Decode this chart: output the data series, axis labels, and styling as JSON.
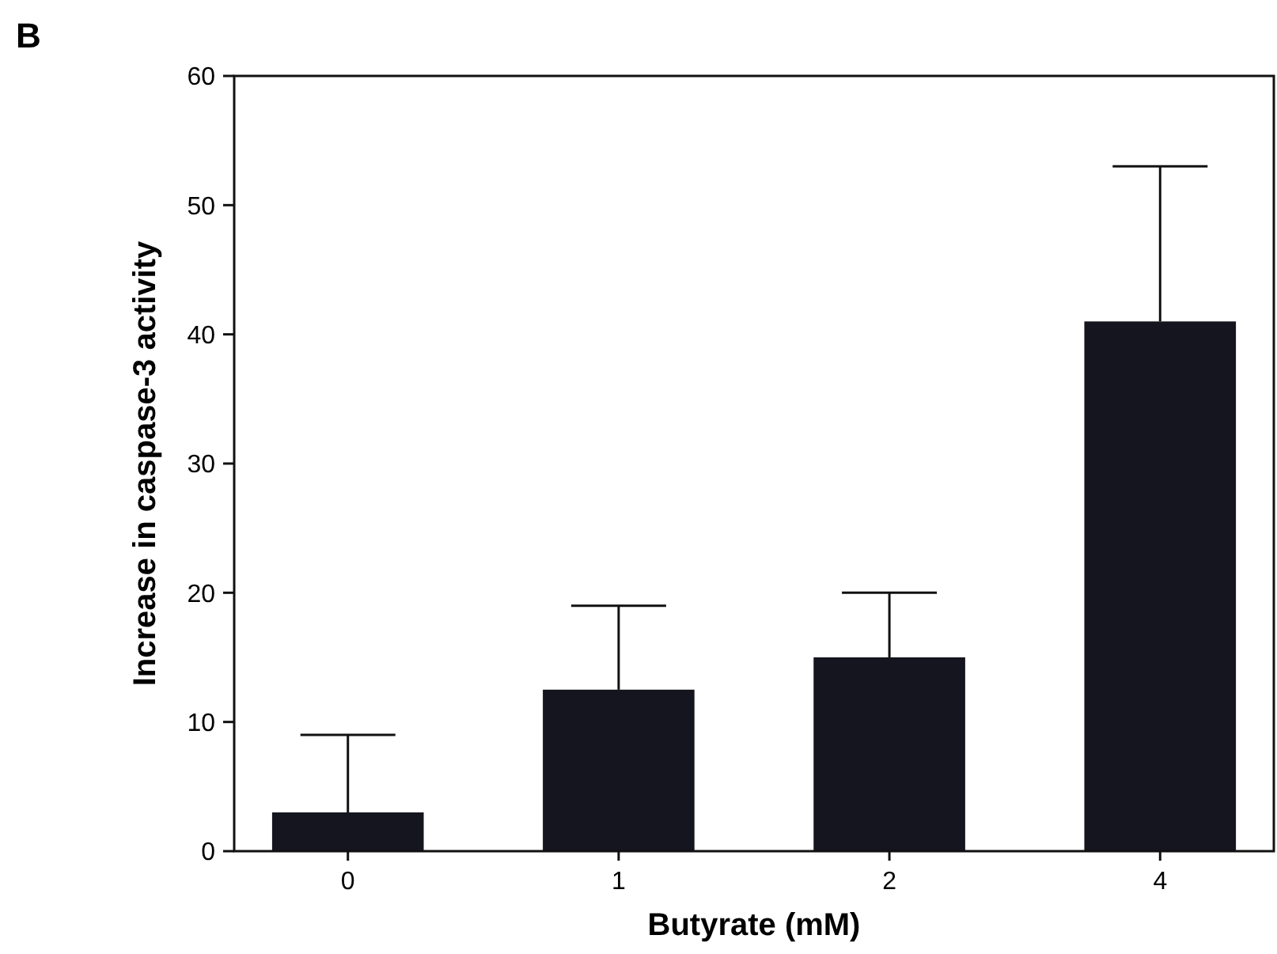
{
  "chart_data": {
    "type": "bar",
    "title": "B",
    "xlabel": "Butyrate (mM)",
    "ylabel": "Increase in caspase-3 activity",
    "categories": [
      "0",
      "1",
      "2",
      "4"
    ],
    "values": [
      3,
      12.5,
      15,
      41
    ],
    "errors": [
      [
        3,
        9
      ],
      [
        12.5,
        19
      ],
      [
        15,
        20
      ],
      [
        41,
        53
      ]
    ],
    "color": "#15151f",
    "ylim": [
      0,
      60
    ],
    "yticks": [
      0,
      10,
      20,
      30,
      40,
      50,
      60
    ],
    "grid": false
  }
}
